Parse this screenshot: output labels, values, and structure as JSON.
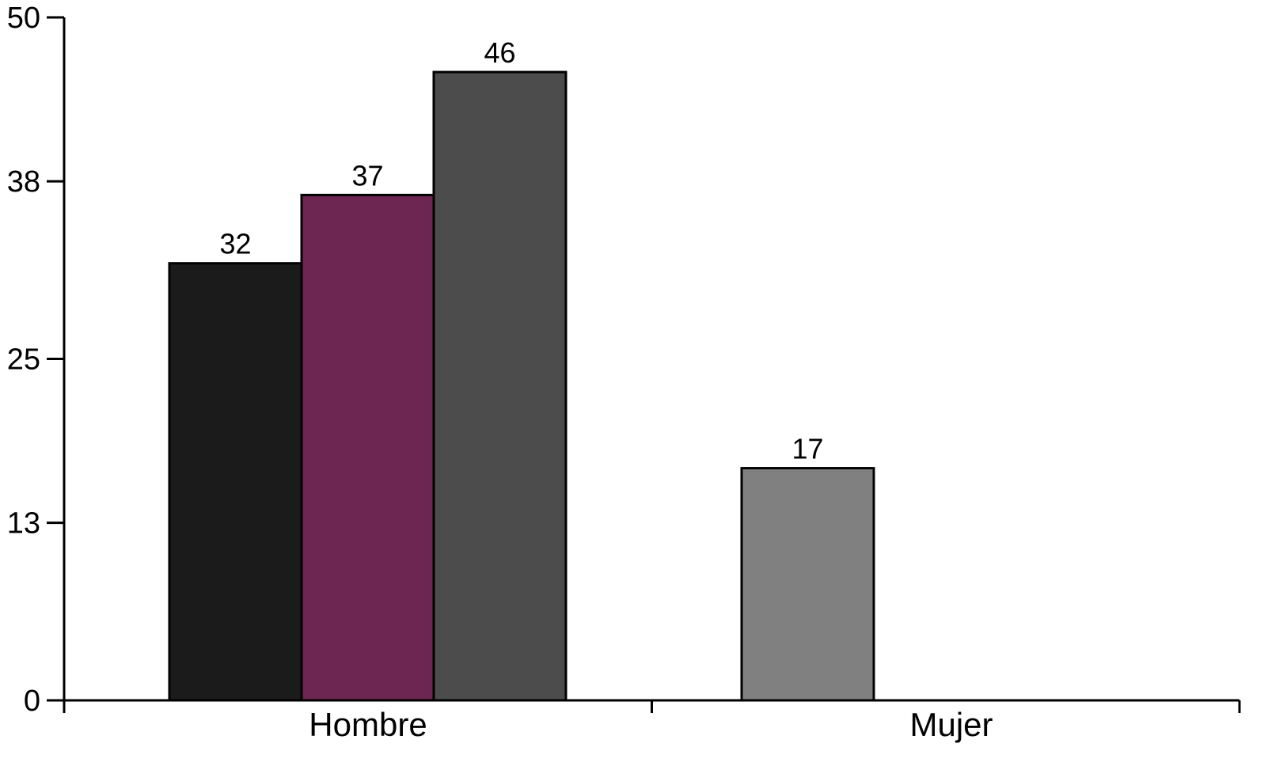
{
  "chart_data": {
    "type": "bar",
    "title": "",
    "xlabel": "",
    "ylabel": "",
    "ylim": [
      0,
      50
    ],
    "yticks": [
      0,
      13,
      25,
      38,
      50
    ],
    "grid": false,
    "legend": "none",
    "categories": [
      "Hombre",
      "Mujer"
    ],
    "bars": [
      {
        "category": "Hombre",
        "value": 32,
        "label": "32",
        "color": "#1b1b1b"
      },
      {
        "category": "Hombre",
        "value": 37,
        "label": "37",
        "color": "#6c2651"
      },
      {
        "category": "Hombre",
        "value": 46,
        "label": "46",
        "color": "#4c4c4c"
      },
      {
        "category": "Mujer",
        "value": 17,
        "label": "17",
        "color": "#808080"
      }
    ]
  }
}
